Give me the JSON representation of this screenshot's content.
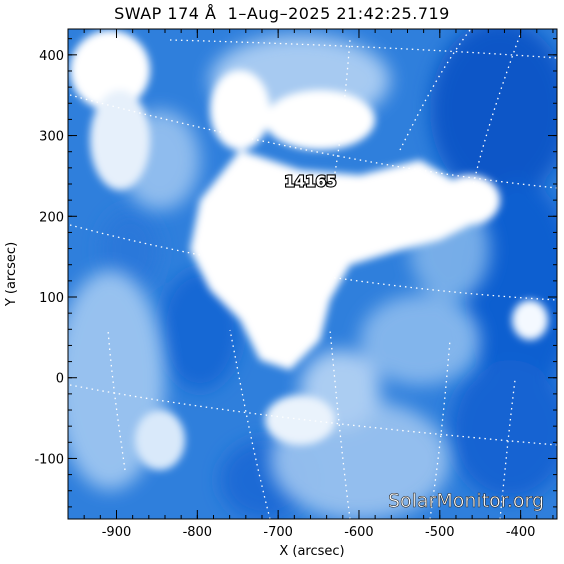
{
  "title": "SWAP 174 Å  1–Aug–2025 21:42:25.719",
  "x_axis": {
    "label": "X (arcsec)",
    "range": [
      -960,
      -355
    ],
    "ticks": [
      "-900",
      "-800",
      "-700",
      "-600",
      "-500",
      "-400"
    ],
    "tick_values": [
      -900,
      -800,
      -700,
      -600,
      -500,
      -400
    ]
  },
  "y_axis": {
    "label": "Y (arcsec)",
    "range": [
      -175,
      432
    ],
    "ticks": [
      "-100",
      "0",
      "100",
      "200",
      "300",
      "400"
    ],
    "tick_values": [
      -100,
      0,
      100,
      200,
      300,
      400
    ]
  },
  "active_region": {
    "label": "14165",
    "x": -660,
    "y": 237
  },
  "watermark": "SolarMonitor.org",
  "colors": {
    "deep_blue": "#0a57c8",
    "mid_blue": "#3e8be0",
    "light_blue": "#a9cdf3",
    "white": "#ffffff",
    "grid": "#ffffff"
  }
}
